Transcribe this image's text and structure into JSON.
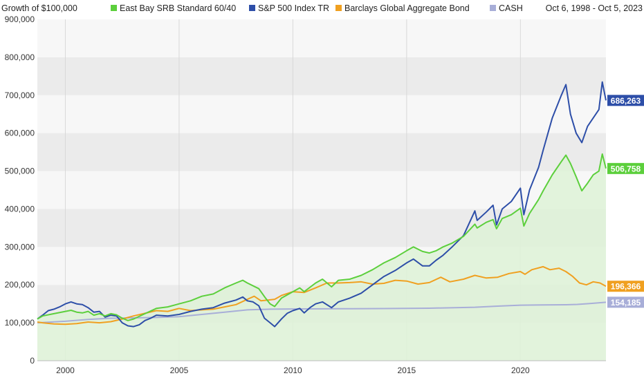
{
  "header": {
    "title": "Growth of $100,000",
    "date_range": "Oct 6, 1998 - Oct 5, 2023"
  },
  "colors": {
    "East Bay SRB Standard 60/40": "#5ccf3c",
    "S&P 500 Index TR": "#2d4ea8",
    "Barclays Global Aggregate Bond": "#f0a020",
    "CASH": "#a8aed8",
    "area_fill": "#dff2d8",
    "band_dark": "#ebebeb",
    "band_light": "#f7f7f7"
  },
  "chart_data": {
    "type": "line",
    "title": "Growth of $100,000",
    "date_range": "Oct 6, 1998 - Oct 5, 2023",
    "xlim": [
      1998.77,
      2023.76
    ],
    "ylim": [
      0,
      900000
    ],
    "y_ticks": [
      0,
      100000,
      200000,
      300000,
      400000,
      500000,
      600000,
      700000,
      800000,
      900000
    ],
    "y_tick_labels": [
      "0",
      "100,000",
      "200,000",
      "300,000",
      "400,000",
      "500,000",
      "600,000",
      "700,000",
      "800,000",
      "900,000"
    ],
    "x_ticks": [
      2000,
      2005,
      2010,
      2015,
      2020
    ],
    "x_tick_labels": [
      "2000",
      "2005",
      "2010",
      "2015",
      "2020"
    ],
    "grid": "alternating horizontal bands, vertical gridlines at x ticks",
    "legend_position": "top",
    "series": [
      {
        "name": "East Bay SRB Standard 60/40",
        "area": true,
        "end_label": "506,758",
        "points": [
          [
            1998.77,
            110000
          ],
          [
            1999.0,
            118000
          ],
          [
            1999.5,
            124000
          ],
          [
            2000.0,
            130000
          ],
          [
            2000.25,
            133000
          ],
          [
            2000.5,
            128000
          ],
          [
            2000.75,
            126000
          ],
          [
            2001.0,
            130000
          ],
          [
            2001.25,
            120000
          ],
          [
            2001.5,
            124000
          ],
          [
            2001.75,
            118000
          ],
          [
            2002.0,
            124000
          ],
          [
            2002.25,
            121000
          ],
          [
            2002.5,
            112000
          ],
          [
            2002.75,
            106000
          ],
          [
            2003.0,
            110000
          ],
          [
            2003.5,
            124000
          ],
          [
            2004.0,
            138000
          ],
          [
            2004.5,
            142000
          ],
          [
            2005.0,
            150000
          ],
          [
            2005.5,
            158000
          ],
          [
            2006.0,
            170000
          ],
          [
            2006.5,
            176000
          ],
          [
            2007.0,
            192000
          ],
          [
            2007.5,
            205000
          ],
          [
            2007.8,
            212000
          ],
          [
            2008.0,
            205000
          ],
          [
            2008.5,
            190000
          ],
          [
            2008.8,
            165000
          ],
          [
            2009.0,
            150000
          ],
          [
            2009.2,
            143000
          ],
          [
            2009.5,
            165000
          ],
          [
            2010.0,
            182000
          ],
          [
            2010.3,
            192000
          ],
          [
            2010.5,
            182000
          ],
          [
            2011.0,
            205000
          ],
          [
            2011.3,
            215000
          ],
          [
            2011.7,
            195000
          ],
          [
            2012.0,
            212000
          ],
          [
            2012.5,
            215000
          ],
          [
            2013.0,
            225000
          ],
          [
            2013.5,
            240000
          ],
          [
            2014.0,
            258000
          ],
          [
            2014.5,
            272000
          ],
          [
            2015.0,
            290000
          ],
          [
            2015.3,
            300000
          ],
          [
            2015.7,
            288000
          ],
          [
            2016.0,
            284000
          ],
          [
            2016.3,
            290000
          ],
          [
            2016.6,
            300000
          ],
          [
            2017.0,
            310000
          ],
          [
            2017.5,
            328000
          ],
          [
            2018.0,
            360000
          ],
          [
            2018.1,
            350000
          ],
          [
            2018.5,
            365000
          ],
          [
            2018.8,
            372000
          ],
          [
            2018.95,
            348000
          ],
          [
            2019.2,
            375000
          ],
          [
            2019.6,
            385000
          ],
          [
            2020.0,
            402000
          ],
          [
            2020.15,
            355000
          ],
          [
            2020.4,
            388000
          ],
          [
            2020.8,
            425000
          ],
          [
            2021.0,
            448000
          ],
          [
            2021.4,
            490000
          ],
          [
            2021.8,
            525000
          ],
          [
            2022.0,
            542000
          ],
          [
            2022.2,
            520000
          ],
          [
            2022.45,
            485000
          ],
          [
            2022.7,
            448000
          ],
          [
            2022.95,
            468000
          ],
          [
            2023.2,
            490000
          ],
          [
            2023.45,
            500000
          ],
          [
            2023.6,
            545000
          ],
          [
            2023.76,
            506758
          ]
        ]
      },
      {
        "name": "S&P 500 Index TR",
        "area": false,
        "end_label": "686,263",
        "points": [
          [
            1998.77,
            110000
          ],
          [
            1999.0,
            120000
          ],
          [
            1999.25,
            132000
          ],
          [
            1999.5,
            136000
          ],
          [
            1999.75,
            142000
          ],
          [
            2000.0,
            150000
          ],
          [
            2000.25,
            155000
          ],
          [
            2000.5,
            150000
          ],
          [
            2000.75,
            148000
          ],
          [
            2001.0,
            140000
          ],
          [
            2001.25,
            128000
          ],
          [
            2001.5,
            130000
          ],
          [
            2001.75,
            115000
          ],
          [
            2002.0,
            120000
          ],
          [
            2002.25,
            118000
          ],
          [
            2002.5,
            100000
          ],
          [
            2002.75,
            92000
          ],
          [
            2003.0,
            90000
          ],
          [
            2003.25,
            95000
          ],
          [
            2003.5,
            106000
          ],
          [
            2003.75,
            112000
          ],
          [
            2004.0,
            120000
          ],
          [
            2004.5,
            118000
          ],
          [
            2005.0,
            122000
          ],
          [
            2005.5,
            130000
          ],
          [
            2006.0,
            136000
          ],
          [
            2006.5,
            140000
          ],
          [
            2007.0,
            152000
          ],
          [
            2007.5,
            160000
          ],
          [
            2007.8,
            168000
          ],
          [
            2008.0,
            158000
          ],
          [
            2008.25,
            155000
          ],
          [
            2008.5,
            145000
          ],
          [
            2008.75,
            112000
          ],
          [
            2009.0,
            100000
          ],
          [
            2009.2,
            90000
          ],
          [
            2009.5,
            110000
          ],
          [
            2009.75,
            125000
          ],
          [
            2010.0,
            132000
          ],
          [
            2010.3,
            138000
          ],
          [
            2010.5,
            126000
          ],
          [
            2010.75,
            140000
          ],
          [
            2011.0,
            150000
          ],
          [
            2011.3,
            155000
          ],
          [
            2011.7,
            140000
          ],
          [
            2012.0,
            155000
          ],
          [
            2012.5,
            165000
          ],
          [
            2013.0,
            178000
          ],
          [
            2013.5,
            200000
          ],
          [
            2014.0,
            222000
          ],
          [
            2014.5,
            238000
          ],
          [
            2015.0,
            258000
          ],
          [
            2015.3,
            268000
          ],
          [
            2015.7,
            250000
          ],
          [
            2016.0,
            250000
          ],
          [
            2016.3,
            265000
          ],
          [
            2016.6,
            278000
          ],
          [
            2017.0,
            300000
          ],
          [
            2017.5,
            330000
          ],
          [
            2018.0,
            395000
          ],
          [
            2018.1,
            370000
          ],
          [
            2018.5,
            392000
          ],
          [
            2018.8,
            410000
          ],
          [
            2018.95,
            358000
          ],
          [
            2019.2,
            400000
          ],
          [
            2019.6,
            420000
          ],
          [
            2020.0,
            455000
          ],
          [
            2020.15,
            385000
          ],
          [
            2020.4,
            450000
          ],
          [
            2020.8,
            510000
          ],
          [
            2021.0,
            555000
          ],
          [
            2021.4,
            640000
          ],
          [
            2021.8,
            700000
          ],
          [
            2022.0,
            728000
          ],
          [
            2022.2,
            650000
          ],
          [
            2022.45,
            600000
          ],
          [
            2022.7,
            575000
          ],
          [
            2022.95,
            618000
          ],
          [
            2023.2,
            640000
          ],
          [
            2023.45,
            662000
          ],
          [
            2023.6,
            735000
          ],
          [
            2023.76,
            686263
          ]
        ]
      },
      {
        "name": "Barclays Global Aggregate Bond",
        "area": false,
        "end_label": "196,366",
        "points": [
          [
            1998.77,
            102000
          ],
          [
            1999.0,
            100000
          ],
          [
            1999.5,
            97000
          ],
          [
            2000.0,
            96000
          ],
          [
            2000.5,
            98000
          ],
          [
            2001.0,
            102000
          ],
          [
            2001.5,
            100000
          ],
          [
            2002.0,
            103000
          ],
          [
            2002.5,
            110000
          ],
          [
            2003.0,
            118000
          ],
          [
            2003.5,
            125000
          ],
          [
            2004.0,
            132000
          ],
          [
            2004.5,
            130000
          ],
          [
            2005.0,
            138000
          ],
          [
            2005.5,
            132000
          ],
          [
            2006.0,
            134000
          ],
          [
            2006.5,
            136000
          ],
          [
            2007.0,
            142000
          ],
          [
            2007.5,
            148000
          ],
          [
            2008.0,
            162000
          ],
          [
            2008.3,
            170000
          ],
          [
            2008.6,
            158000
          ],
          [
            2008.9,
            160000
          ],
          [
            2009.2,
            162000
          ],
          [
            2009.5,
            172000
          ],
          [
            2010.0,
            182000
          ],
          [
            2010.5,
            180000
          ],
          [
            2011.0,
            192000
          ],
          [
            2011.5,
            205000
          ],
          [
            2012.0,
            205000
          ],
          [
            2012.5,
            206000
          ],
          [
            2013.0,
            208000
          ],
          [
            2013.5,
            202000
          ],
          [
            2014.0,
            204000
          ],
          [
            2014.5,
            212000
          ],
          [
            2015.0,
            210000
          ],
          [
            2015.5,
            202000
          ],
          [
            2016.0,
            206000
          ],
          [
            2016.5,
            220000
          ],
          [
            2016.9,
            208000
          ],
          [
            2017.5,
            215000
          ],
          [
            2018.0,
            225000
          ],
          [
            2018.5,
            218000
          ],
          [
            2019.0,
            220000
          ],
          [
            2019.5,
            230000
          ],
          [
            2020.0,
            235000
          ],
          [
            2020.2,
            228000
          ],
          [
            2020.5,
            240000
          ],
          [
            2021.0,
            248000
          ],
          [
            2021.3,
            240000
          ],
          [
            2021.7,
            244000
          ],
          [
            2022.0,
            235000
          ],
          [
            2022.3,
            222000
          ],
          [
            2022.6,
            205000
          ],
          [
            2022.9,
            200000
          ],
          [
            2023.2,
            208000
          ],
          [
            2023.5,
            205000
          ],
          [
            2023.76,
            196366
          ]
        ]
      },
      {
        "name": "CASH",
        "area": false,
        "end_label": "154,185",
        "points": [
          [
            1998.77,
            100000
          ],
          [
            2000.0,
            104000
          ],
          [
            2001.0,
            109000
          ],
          [
            2002.0,
            112000
          ],
          [
            2003.0,
            113000
          ],
          [
            2004.0,
            114000
          ],
          [
            2005.0,
            116000
          ],
          [
            2006.0,
            122000
          ],
          [
            2007.0,
            128000
          ],
          [
            2008.0,
            134000
          ],
          [
            2009.0,
            136000
          ],
          [
            2010.0,
            136500
          ],
          [
            2012.0,
            137000
          ],
          [
            2014.0,
            137500
          ],
          [
            2016.0,
            138500
          ],
          [
            2018.0,
            141000
          ],
          [
            2019.0,
            144000
          ],
          [
            2020.0,
            146500
          ],
          [
            2021.0,
            147000
          ],
          [
            2022.0,
            147500
          ],
          [
            2022.5,
            148500
          ],
          [
            2023.0,
            150500
          ],
          [
            2023.76,
            154185
          ]
        ]
      }
    ]
  }
}
